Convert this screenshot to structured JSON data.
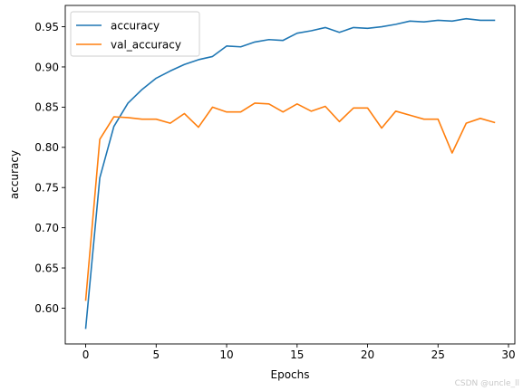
{
  "watermark": "CSDN @uncle_ll",
  "chart_data": {
    "type": "line",
    "xlabel": "Epochs",
    "ylabel": "accuracy",
    "xlim": [
      -1.45,
      30.45
    ],
    "ylim": [
      0.5555,
      0.9765
    ],
    "xticks": [
      0,
      5,
      10,
      15,
      20,
      25,
      30
    ],
    "yticks": [
      0.6,
      0.65,
      0.7,
      0.75,
      0.8,
      0.85,
      0.9,
      0.95
    ],
    "grid": false,
    "legend_position": "top-left",
    "x": [
      0,
      1,
      2,
      3,
      4,
      5,
      6,
      7,
      8,
      9,
      10,
      11,
      12,
      13,
      14,
      15,
      16,
      17,
      18,
      19,
      20,
      21,
      22,
      23,
      24,
      25,
      26,
      27,
      28,
      29
    ],
    "series": [
      {
        "name": "accuracy",
        "color": "#1f77b4",
        "values": [
          0.575,
          0.762,
          0.826,
          0.855,
          0.872,
          0.886,
          0.895,
          0.903,
          0.909,
          0.913,
          0.926,
          0.925,
          0.931,
          0.934,
          0.933,
          0.942,
          0.945,
          0.949,
          0.943,
          0.949,
          0.948,
          0.95,
          0.953,
          0.957,
          0.956,
          0.958,
          0.957,
          0.96,
          0.958,
          0.958
        ]
      },
      {
        "name": "val_accuracy",
        "color": "#ff7f0e",
        "values": [
          0.61,
          0.81,
          0.838,
          0.837,
          0.835,
          0.835,
          0.83,
          0.842,
          0.825,
          0.85,
          0.844,
          0.844,
          0.855,
          0.854,
          0.844,
          0.854,
          0.845,
          0.851,
          0.832,
          0.849,
          0.849,
          0.824,
          0.845,
          0.84,
          0.835,
          0.835,
          0.793,
          0.83,
          0.836,
          0.831
        ]
      }
    ]
  }
}
